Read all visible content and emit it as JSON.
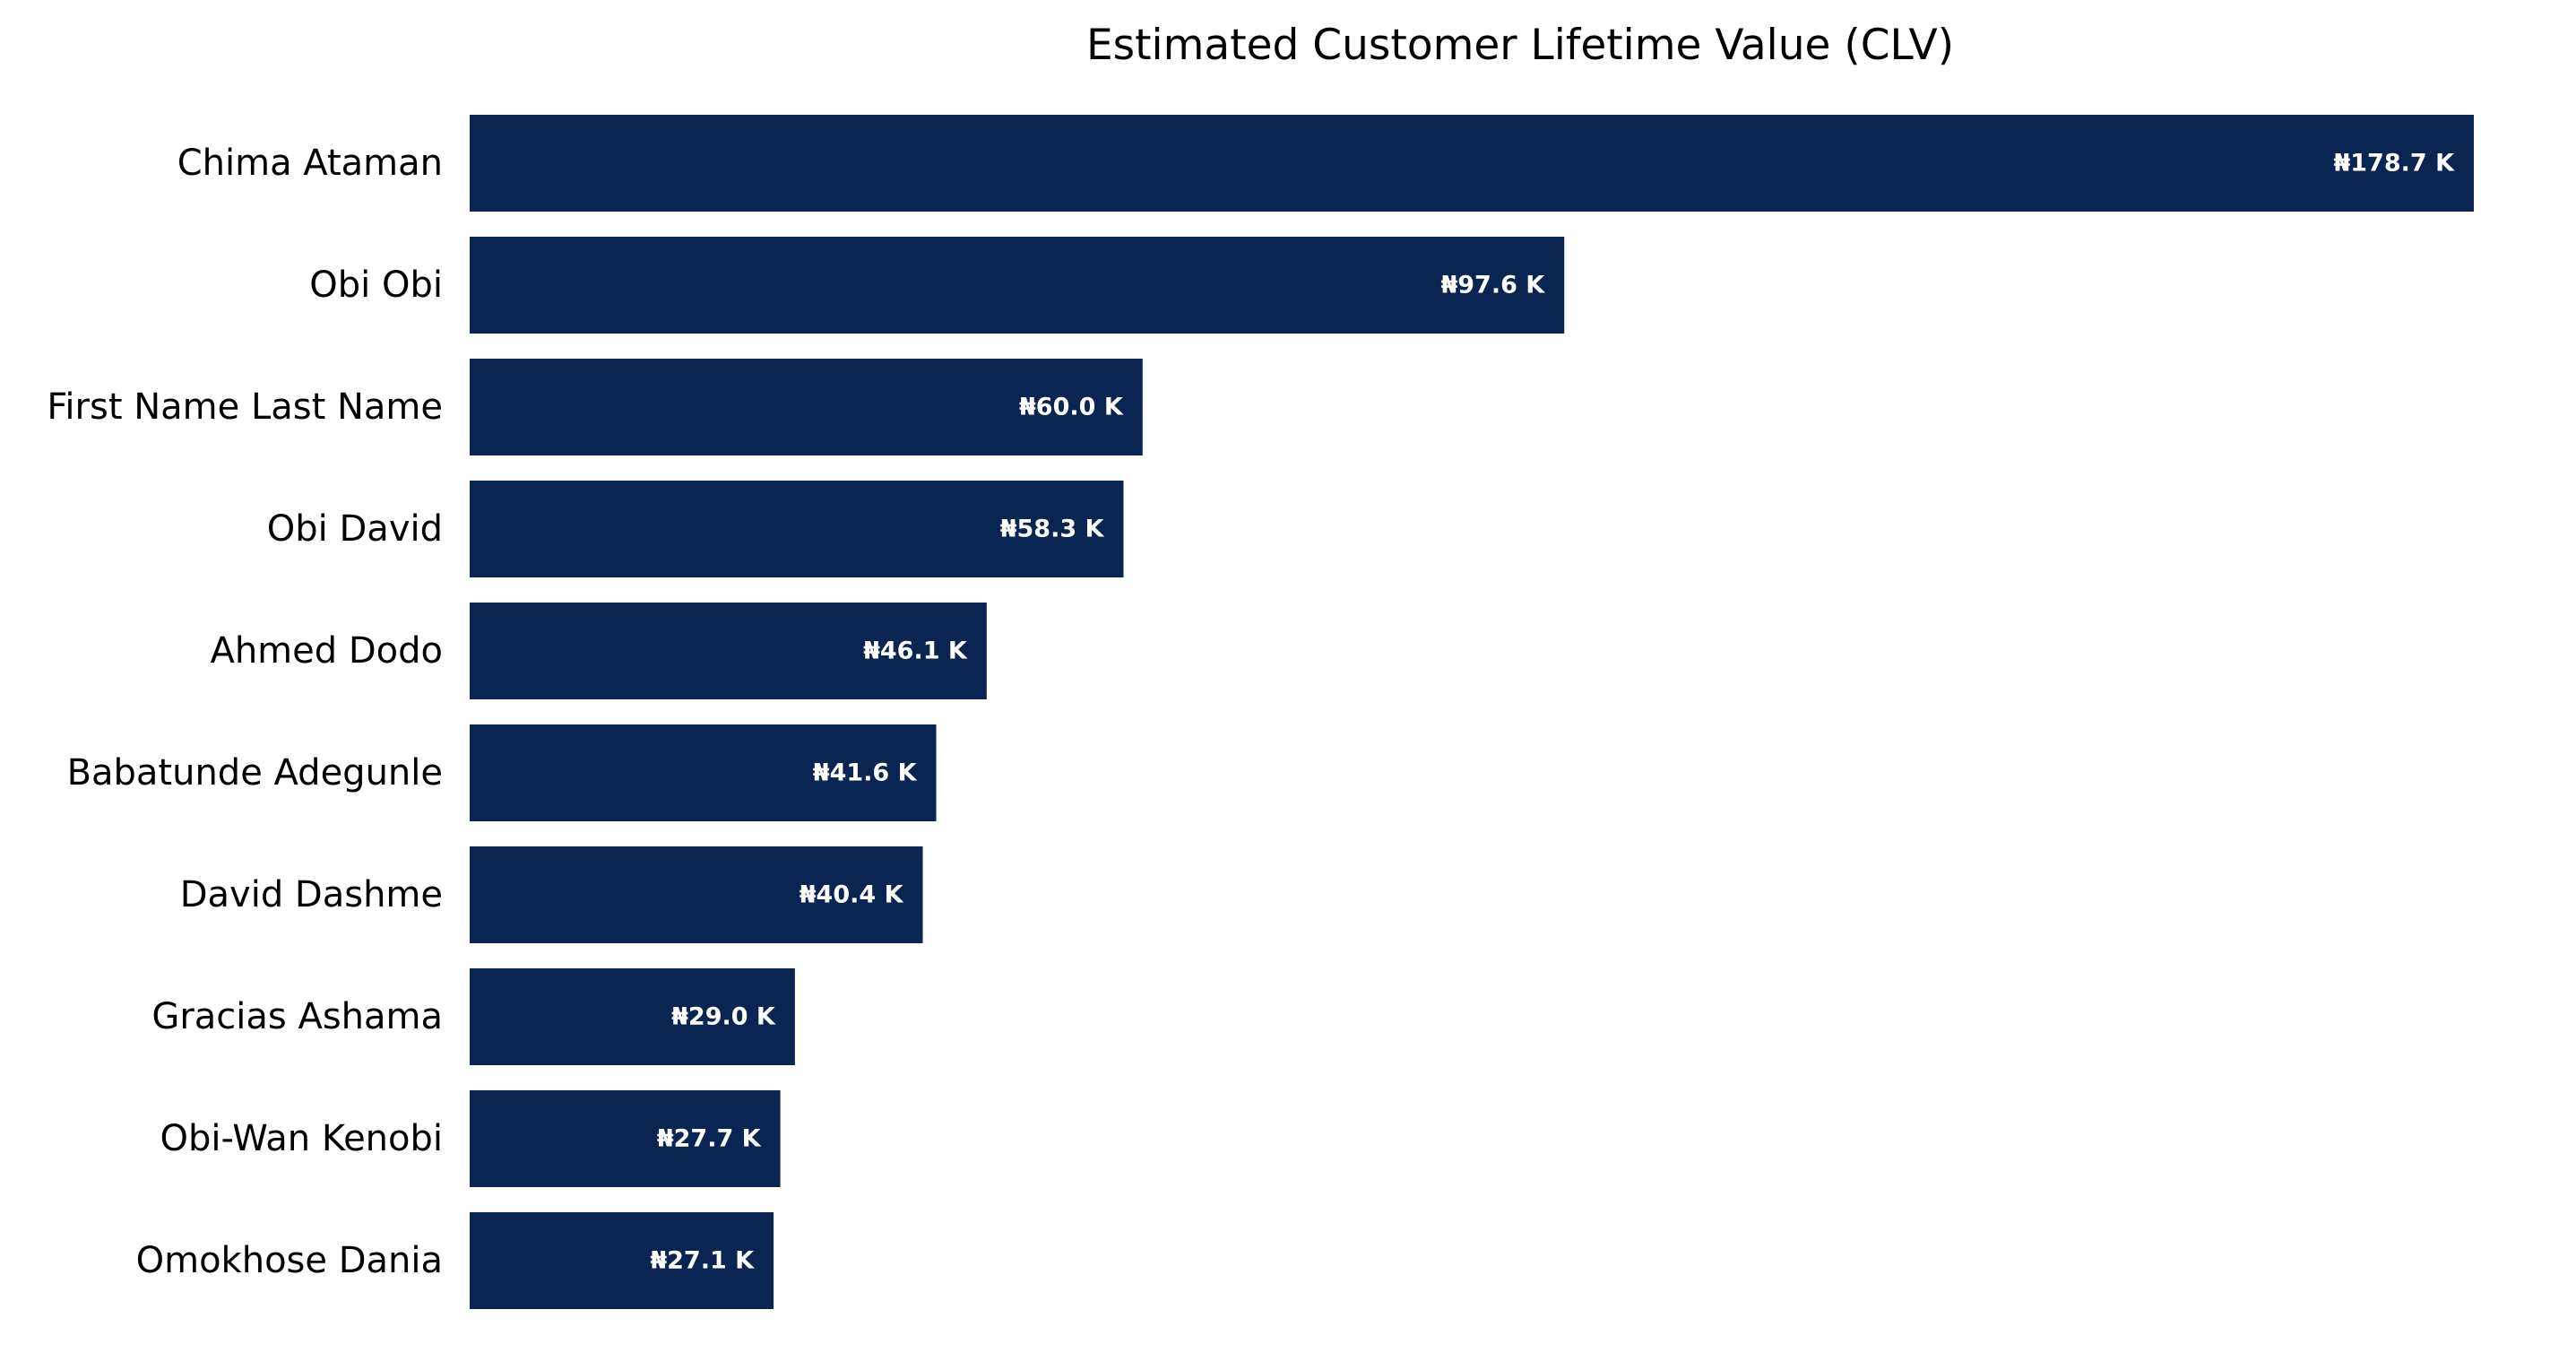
{
  "chart_data": {
    "type": "bar",
    "orientation": "horizontal",
    "title": "Estimated Customer Lifetime Value (CLV)",
    "xlabel": "",
    "ylabel": "",
    "categories": [
      "Chima Ataman",
      "Obi Obi",
      "First Name Last Name",
      "Obi David",
      "Ahmed Dodo",
      "Babatunde Adegunle",
      "David Dashme",
      "Gracias Ashama",
      "Obi-Wan Kenobi",
      "Omokhose Dania"
    ],
    "values": [
      178.7,
      97.6,
      60.0,
      58.3,
      46.1,
      41.6,
      40.4,
      29.0,
      27.7,
      27.1
    ],
    "value_labels": [
      "₦178.7 K",
      "₦97.6 K",
      "₦60.0 K",
      "₦58.3 K",
      "₦46.1 K",
      "₦41.6 K",
      "₦40.4 K",
      "₦29.0 K",
      "₦27.7 K",
      "₦27.1 K"
    ],
    "xlim": [
      0,
      178.7
    ],
    "grid": false,
    "axes_visible": false,
    "legend": "none",
    "bar_color": "#0a2551",
    "label_color": "#ffffff"
  }
}
